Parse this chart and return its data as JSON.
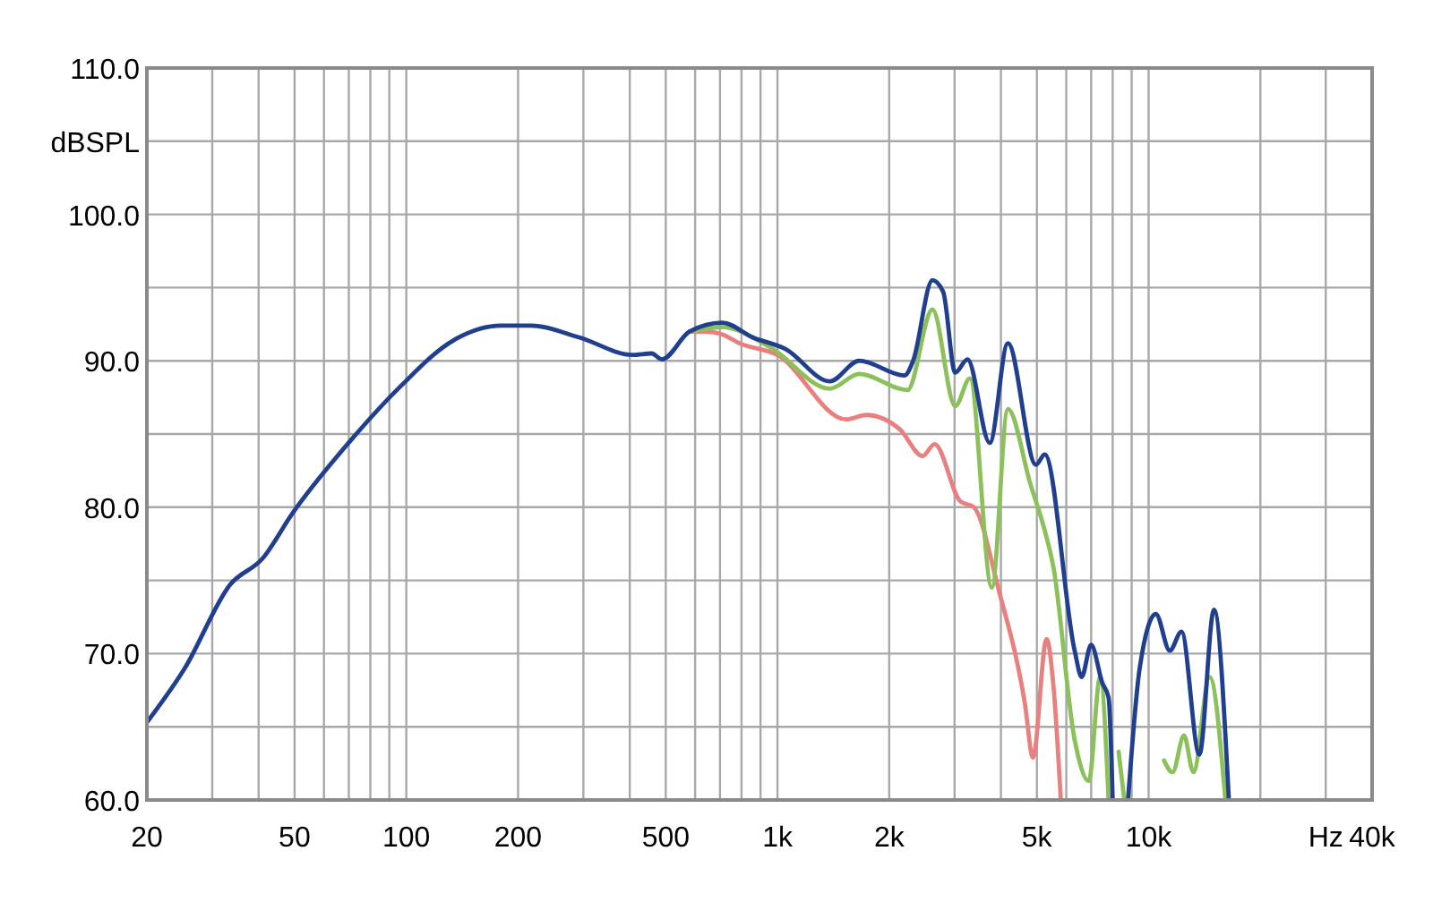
{
  "chart_data": {
    "type": "line",
    "xlabel": "Hz",
    "ylabel": "dBSPL",
    "log": "x",
    "grid": true,
    "marker": "none",
    "line_style": "solid",
    "xlim": [
      20,
      40000
    ],
    "ylim": [
      60,
      110
    ],
    "xticks": [
      20,
      {
        "value": 30,
        "label": null
      },
      {
        "value": 40,
        "label": null
      },
      50,
      {
        "value": 60,
        "label": null
      },
      {
        "value": 70,
        "label": null
      },
      {
        "value": 80,
        "label": null
      },
      {
        "value": 90,
        "label": null
      },
      100,
      200,
      {
        "value": 300,
        "label": null
      },
      {
        "value": 400,
        "label": null
      },
      500,
      {
        "value": 600,
        "label": null
      },
      {
        "value": 700,
        "label": null
      },
      {
        "value": 800,
        "label": null
      },
      {
        "value": 900,
        "label": null
      },
      {
        "value": 1000,
        "label": "1k"
      },
      {
        "value": 2000,
        "label": "2k"
      },
      {
        "value": 3000,
        "label": null
      },
      {
        "value": 4000,
        "label": null
      },
      {
        "value": 5000,
        "label": "5k"
      },
      {
        "value": 6000,
        "label": null
      },
      {
        "value": 7000,
        "label": null
      },
      {
        "value": 8000,
        "label": null
      },
      {
        "value": 9000,
        "label": null
      },
      {
        "value": 10000,
        "label": "10k"
      },
      {
        "value": 20000,
        "label": null
      },
      {
        "value": 30000,
        "label": null
      },
      {
        "value": 40000,
        "label": "40k"
      }
    ],
    "yticks": [
      {
        "value": 60,
        "label": "60.0"
      },
      {
        "value": 65,
        "label": null
      },
      {
        "value": 70,
        "label": "70.0"
      },
      {
        "value": 75,
        "label": null
      },
      {
        "value": 80,
        "label": "80.0"
      },
      {
        "value": 85,
        "label": null
      },
      {
        "value": 90,
        "label": "90.0"
      },
      {
        "value": 95,
        "label": null
      },
      {
        "value": 100,
        "label": "100.0"
      },
      {
        "value": 105,
        "label": null
      },
      {
        "value": 110,
        "label": "110.0"
      }
    ],
    "series": [
      {
        "color": "#e88080",
        "x": [
          580,
          640,
          710,
          790,
          1000,
          1530,
          1735,
          2140,
          2460,
          2650,
          3110,
          3380,
          3950,
          4640,
          4880,
          5310,
          5540,
          5800
        ],
        "values": [
          92.0,
          92.0,
          91.8,
          91.2,
          90.4,
          86.0,
          86.3,
          85.3,
          83.5,
          84.3,
          80.4,
          80.0,
          74.3,
          66.6,
          62.9,
          71.0,
          67.8,
          60.0
        ]
      },
      {
        "color": "#8cc05a",
        "x": [
          580,
          710,
          958,
          1384,
          1660,
          2240,
          2616,
          3012,
          3300,
          3780,
          4176,
          4800,
          5250,
          5540,
          6320,
          6900,
          7400,
          7800,
          7950,
          8300,
          8600,
          10500,
          11000,
          11600,
          12450,
          13200,
          14600,
          16100
        ],
        "values": [
          92.0,
          92.3,
          90.9,
          88.1,
          89.1,
          88.0,
          93.5,
          86.9,
          88.8,
          74.5,
          86.7,
          81.6,
          78.4,
          75.9,
          64.1,
          61.3,
          68.4,
          60.0,
          null,
          63.3,
          60.0,
          null,
          62.7,
          61.9,
          64.4,
          61.9,
          68.4,
          60.0
        ]
      },
      {
        "color": "#213f8f",
        "x": [
          20,
          25.3,
          33.5,
          41,
          49.4,
          71.6,
          96,
          134,
          180,
          217,
          292,
          408,
          458,
          488,
          580,
          710,
          857,
          1052,
          1384,
          1660,
          2200,
          2320,
          2616,
          2796,
          3012,
          3250,
          3732,
          4176,
          4970,
          5250,
          6320,
          6600,
          7000,
          7500,
          7800,
          8000,
          8300,
          8800,
          9460,
          10460,
          11400,
          12260,
          13700,
          15000,
          16450
        ],
        "values": [
          65.3,
          69.0,
          74.7,
          76.5,
          79.6,
          84.7,
          88.2,
          91.4,
          92.4,
          92.4,
          91.6,
          90.4,
          90.5,
          90.1,
          92.0,
          92.6,
          91.6,
          90.8,
          88.6,
          90.0,
          89.0,
          90.0,
          95.5,
          94.7,
          89.2,
          90.1,
          84.4,
          91.2,
          82.9,
          83.6,
          70.2,
          68.4,
          70.6,
          68.0,
          67.0,
          60.0,
          null,
          60.0,
          69.0,
          72.7,
          70.2,
          71.5,
          63.1,
          73.0,
          60.0
        ]
      }
    ]
  }
}
